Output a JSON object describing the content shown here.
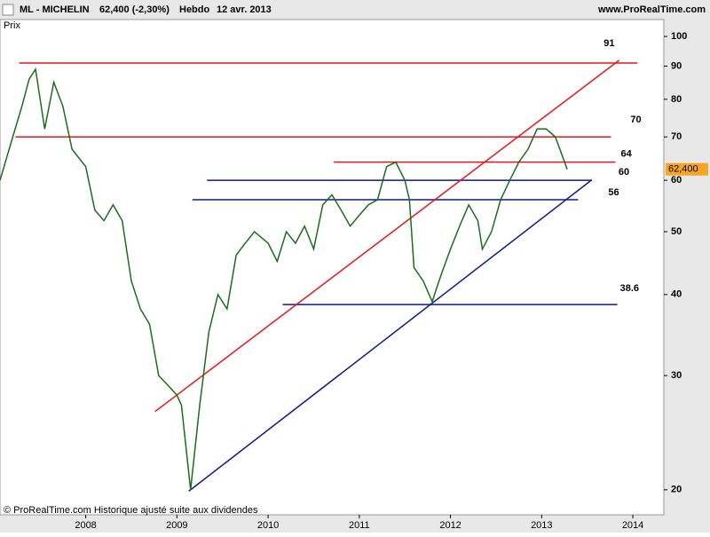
{
  "header": {
    "symbol": "ML - MICHELIN",
    "quote": "62,400 (-2,30%)",
    "period": "Hebdo",
    "date": "12 avr. 2013",
    "site": "www.ProRealTime.com"
  },
  "footer": "© ProRealTime.com Historique ajusté suite aux dividendes",
  "chart_data": {
    "type": "line",
    "y_label": "Prix",
    "log_scale": true,
    "x": [
      2007.06,
      2007.2,
      2007.3,
      2007.38,
      2007.45,
      2007.55,
      2007.65,
      2007.75,
      2007.85,
      2008.0,
      2008.1,
      2008.2,
      2008.3,
      2008.4,
      2008.5,
      2008.6,
      2008.7,
      2008.8,
      2008.9,
      2009.0,
      2009.05,
      2009.15,
      2009.25,
      2009.35,
      2009.45,
      2009.55,
      2009.65,
      2009.75,
      2009.85,
      2010.0,
      2010.1,
      2010.2,
      2010.3,
      2010.4,
      2010.5,
      2010.6,
      2010.7,
      2010.8,
      2010.9,
      2011.0,
      2011.1,
      2011.2,
      2011.3,
      2011.4,
      2011.5,
      2011.55,
      2011.6,
      2011.7,
      2011.8,
      2011.85,
      2011.9,
      2012.0,
      2012.1,
      2012.2,
      2012.3,
      2012.35,
      2012.45,
      2012.55,
      2012.65,
      2012.75,
      2012.85,
      2012.95,
      2013.05,
      2013.15,
      2013.2,
      2013.28
    ],
    "series": [
      {
        "name": "ML - MICHELIN",
        "color": "#1a6e1a",
        "values": [
          60,
          70,
          78,
          86,
          89,
          72,
          85,
          78,
          67,
          63,
          54,
          52,
          55,
          52,
          42,
          38,
          36,
          30,
          29,
          28,
          27,
          20,
          27,
          35,
          40,
          38,
          46,
          48,
          50,
          48,
          45,
          50,
          48,
          51,
          47,
          55,
          57,
          54,
          51,
          53,
          55,
          56,
          63,
          64,
          60,
          56,
          44,
          42,
          39,
          41,
          43,
          47,
          51,
          55,
          52,
          47,
          50,
          56,
          60,
          64,
          67,
          72,
          72,
          70,
          67,
          62.4
        ]
      }
    ],
    "last_price": {
      "value": 62.4,
      "label": "62,400",
      "color": "#f5a623"
    },
    "levels": [
      {
        "value": 91,
        "label": "91",
        "from": 2007.27,
        "to": 2014.05,
        "color": "#e8141b"
      },
      {
        "value": 70,
        "label": "70",
        "from": 2007.23,
        "to": 2013.76,
        "color": "#e8141b"
      },
      {
        "value": 64,
        "label": "64",
        "from": 2010.72,
        "to": 2013.81,
        "color": "#e8141b"
      },
      {
        "value": 60,
        "label": "60",
        "from": 2009.33,
        "to": 2013.55,
        "color": "#0d1a8c"
      },
      {
        "value": 56,
        "label": "56",
        "from": 2009.17,
        "to": 2013.4,
        "color": "#0d1a8c"
      },
      {
        "value": 38.6,
        "label": "38.6",
        "from": 2010.16,
        "to": 2013.83,
        "color": "#0d1a8c"
      }
    ],
    "trendlines": [
      {
        "x": [
          2008.76,
          2013.85
        ],
        "y": [
          26.4,
          91.9
        ],
        "color": "#e8141b"
      },
      {
        "x": [
          2009.13,
          2013.55
        ],
        "y": [
          19.9,
          60.1
        ],
        "color": "#0d1a8c"
      }
    ],
    "xlim": [
      2007.06,
      2014.34
    ],
    "xticks": [
      2008,
      2009,
      2010,
      2011,
      2012,
      2013,
      2014
    ],
    "ylim": [
      18.3,
      104.2
    ],
    "yticks": [
      20,
      30,
      40,
      50,
      60,
      70,
      80,
      90,
      100
    ]
  }
}
